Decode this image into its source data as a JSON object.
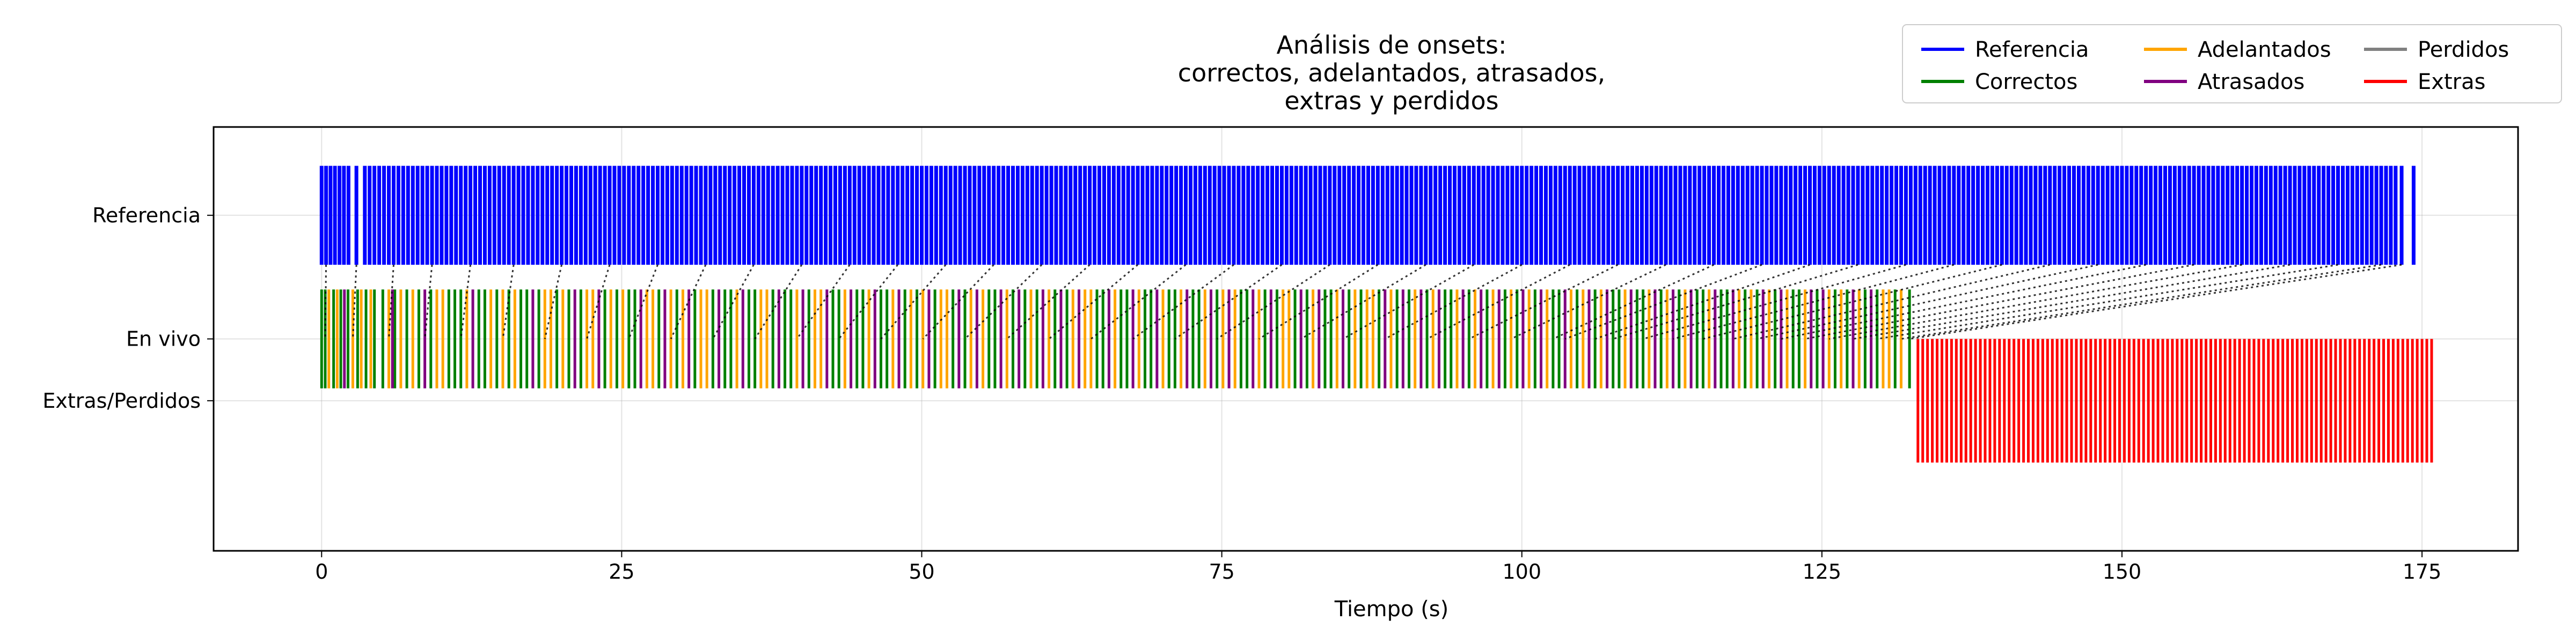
{
  "chart_data": {
    "type": "event-timeline",
    "title_lines": [
      "Análisis de onsets:",
      "correctos, adelantados, atrasados,",
      "extras y perdidos"
    ],
    "xlabel": "Tiempo (s)",
    "xlim": [
      -9,
      183
    ],
    "xticks": [
      0,
      25,
      50,
      75,
      100,
      125,
      150,
      175
    ],
    "ylim": [
      -1.2,
      1.2
    ],
    "ytick_labels": [
      {
        "value": 0.7,
        "label": "Referencia"
      },
      {
        "value": 0.0,
        "label": "En vivo"
      },
      {
        "value": -0.35,
        "label": "Extras/Perdidos"
      }
    ],
    "grid": true,
    "legend": {
      "placement": "top-right",
      "columns": 3,
      "entries": [
        {
          "name": "Referencia",
          "color": "#0000ff"
        },
        {
          "name": "Correctos",
          "color": "#008000"
        },
        {
          "name": "Adelantados",
          "color": "#ffa500"
        },
        {
          "name": "Atrasados",
          "color": "#800080"
        },
        {
          "name": "Perdidos",
          "color": "#808080"
        },
        {
          "name": "Extras",
          "color": "#ff0000"
        }
      ]
    },
    "rows": {
      "reference": {
        "y_low": 0.42,
        "y_high": 0.98,
        "color": "#0000ff"
      },
      "live": {
        "y_low": -0.28,
        "y_high": 0.28
      },
      "extras": {
        "y_low": -0.7,
        "y_high": 0.0,
        "color": "#ff0000"
      },
      "link_y_top": 0.42,
      "link_y_bottom": 0.0
    },
    "reference_onsets": [
      0.0,
      0.37,
      0.74,
      1.11,
      1.49,
      1.86,
      2.24,
      2.9,
      3.6,
      4.0,
      4.4,
      4.8,
      5.2,
      5.6,
      6.0,
      6.4,
      6.8,
      7.2,
      7.6,
      8.0,
      8.4,
      8.8,
      9.2,
      9.6,
      10.0,
      10.4,
      10.8,
      11.2,
      11.6,
      12.0,
      12.4,
      12.8,
      13.2,
      13.6,
      14.0,
      14.4,
      14.8,
      15.2,
      15.6,
      16.0,
      16.4,
      16.8,
      17.2,
      17.6,
      18.0,
      18.4,
      18.8,
      19.2,
      19.6,
      20.0,
      20.4,
      20.8,
      21.2,
      21.6,
      22.0,
      22.4,
      22.8,
      23.2,
      23.6,
      24.0,
      24.4,
      24.8,
      25.2,
      25.6,
      26.0,
      26.4,
      26.8,
      27.2,
      27.6,
      28.0,
      28.4,
      28.8,
      29.2,
      29.6,
      30.0,
      30.4,
      30.8,
      31.2,
      31.6,
      32.0,
      32.4,
      32.8,
      33.2,
      33.6,
      34.0,
      34.4,
      34.8,
      35.2,
      35.6,
      36.0,
      36.4,
      36.8,
      37.2,
      37.6,
      38.0,
      38.4,
      38.8,
      39.2,
      39.6,
      40.0,
      40.4,
      40.8,
      41.2,
      41.6,
      42.0,
      42.4,
      42.8,
      43.2,
      43.6,
      44.0,
      44.4,
      44.8,
      45.2,
      45.6,
      46.0,
      46.4,
      46.8,
      47.2,
      47.6,
      48.0,
      48.4,
      48.8,
      49.2,
      49.6,
      50.0,
      50.4,
      50.8,
      51.2,
      51.6,
      52.0,
      52.4,
      52.8,
      53.2,
      53.6,
      54.0,
      54.4,
      54.8,
      55.2,
      55.6,
      56.0,
      56.4,
      56.8,
      57.2,
      57.6,
      58.0,
      58.4,
      58.8,
      59.2,
      59.6,
      60.0,
      60.4,
      60.8,
      61.2,
      61.6,
      62.0,
      62.4,
      62.8,
      63.2,
      63.6,
      64.0,
      64.4,
      64.8,
      65.2,
      65.6,
      66.0,
      66.4,
      66.8,
      67.2,
      67.6,
      68.0,
      68.4,
      68.8,
      69.2,
      69.6,
      70.0,
      70.4,
      70.8,
      71.2,
      71.6,
      72.0,
      72.4,
      72.8,
      73.2,
      73.6,
      74.0,
      74.4,
      74.8,
      75.2,
      75.6,
      76.0,
      76.4,
      76.8,
      77.2,
      77.6,
      78.0,
      78.4,
      78.8,
      79.2,
      79.6,
      80.0,
      80.4,
      80.8,
      81.2,
      81.6,
      82.0,
      82.4,
      82.8,
      83.2,
      83.6,
      84.0,
      84.4,
      84.8,
      85.2,
      85.6,
      86.0,
      86.4,
      86.8,
      87.2,
      87.6,
      88.0,
      88.4,
      88.8,
      89.2,
      89.6,
      90.0,
      90.4,
      90.8,
      91.2,
      91.6,
      92.0,
      92.4,
      92.8,
      93.2,
      93.6,
      94.0,
      94.4,
      94.8,
      95.2,
      95.6,
      96.0,
      96.4,
      96.8,
      97.2,
      97.6,
      98.0,
      98.4,
      98.8,
      99.2,
      99.6,
      100.0,
      100.4,
      100.8,
      101.2,
      101.6,
      102.0,
      102.4,
      102.8,
      103.2,
      103.6,
      104.0,
      104.4,
      104.8,
      105.2,
      105.6,
      106.0,
      106.4,
      106.8,
      107.2,
      107.6,
      108.0,
      108.4,
      108.8,
      109.2,
      109.6,
      110.0,
      110.4,
      110.8,
      111.2,
      111.6,
      112.0,
      112.4,
      112.8,
      113.2,
      113.6,
      114.0,
      114.4,
      114.8,
      115.2,
      115.6,
      116.0,
      116.4,
      116.8,
      117.2,
      117.6,
      118.0,
      118.4,
      118.8,
      119.2,
      119.6,
      120.0,
      120.4,
      120.8,
      121.2,
      121.6,
      122.0,
      122.4,
      122.8,
      123.2,
      123.6,
      124.0,
      124.4,
      124.8,
      125.2,
      125.6,
      126.0,
      126.4,
      126.8,
      127.2,
      127.6,
      128.0,
      128.4,
      128.8,
      129.2,
      129.6,
      130.0,
      130.4,
      130.8,
      131.2,
      131.6,
      132.0,
      132.4,
      132.8,
      133.2,
      133.6,
      134.0,
      134.4,
      134.8,
      135.2,
      135.6,
      136.0,
      136.4,
      136.8,
      137.2,
      137.6,
      138.0,
      138.4,
      138.8,
      139.2,
      139.6,
      140.0,
      140.4,
      140.8,
      141.2,
      141.6,
      142.0,
      142.4,
      142.8,
      143.2,
      143.6,
      144.0,
      144.4,
      144.8,
      145.2,
      145.6,
      146.0,
      146.4,
      146.8,
      147.2,
      147.6,
      148.0,
      148.4,
      148.8,
      149.2,
      149.6,
      150.0,
      150.4,
      150.8,
      151.2,
      151.6,
      152.0,
      152.4,
      152.8,
      153.2,
      153.6,
      154.0,
      154.4,
      154.8,
      155.2,
      155.6,
      156.0,
      156.4,
      156.8,
      157.2,
      157.6,
      158.0,
      158.4,
      158.8,
      159.2,
      159.6,
      160.0,
      160.4,
      160.8,
      161.2,
      161.6,
      162.0,
      162.4,
      162.8,
      163.2,
      163.6,
      164.0,
      164.4,
      164.8,
      165.2,
      165.6,
      166.0,
      166.4,
      166.8,
      167.2,
      167.6,
      168.0,
      168.4,
      168.8,
      169.2,
      169.6,
      170.0,
      170.4,
      170.8,
      171.2,
      171.6,
      172.0,
      172.4,
      172.8,
      173.3,
      174.3
    ],
    "live_onsets_correctos": [
      0.0,
      0.3,
      1.0,
      1.6,
      2.2,
      3.0,
      3.7,
      4.4,
      5.1,
      6.1,
      7.1,
      8.1,
      9.1,
      10.6,
      11.1,
      11.6,
      13.1,
      13.6,
      14.6,
      15.6,
      16.6,
      17.1,
      18.1,
      19.6,
      20.6,
      21.6,
      23.6,
      24.6,
      25.6,
      26.1,
      28.1,
      29.6,
      31.1,
      32.6,
      33.6,
      34.1,
      35.6,
      36.1,
      37.6,
      38.6,
      39.1,
      40.6,
      42.6,
      43.1,
      44.6,
      45.1,
      46.6,
      47.1,
      48.6,
      49.6,
      51.1,
      52.6,
      53.6,
      55.6,
      56.1,
      57.6,
      58.6,
      59.6,
      61.1,
      62.1,
      64.6,
      65.1,
      66.6,
      67.1,
      68.6,
      69.1,
      70.6,
      71.1,
      72.6,
      73.1,
      74.6,
      76.6,
      77.1,
      78.6,
      79.6,
      81.1,
      82.1,
      83.6,
      84.1,
      85.6,
      86.6,
      88.1,
      89.6,
      90.6,
      92.1,
      93.6,
      94.1,
      95.6,
      97.1,
      98.6,
      99.6,
      101.1,
      102.6,
      103.1,
      104.6,
      106.1,
      107.6,
      108.1,
      109.6,
      110.1,
      111.6,
      113.1,
      114.6,
      115.1,
      116.6,
      117.1,
      118.6,
      119.6,
      121.1,
      122.6,
      123.1,
      124.6,
      126.1,
      127.1,
      128.6,
      129.6,
      131.1,
      132.3
    ],
    "live_onsets_adelantados": [
      0.6,
      1.3,
      2.6,
      3.3,
      4.1,
      5.6,
      6.6,
      7.6,
      9.6,
      10.1,
      12.1,
      14.1,
      15.1,
      16.1,
      18.6,
      19.1,
      20.1,
      22.1,
      22.6,
      24.1,
      25.1,
      27.1,
      27.6,
      29.1,
      30.1,
      31.6,
      32.1,
      34.6,
      36.6,
      37.1,
      39.6,
      41.1,
      41.6,
      43.6,
      45.6,
      47.6,
      49.1,
      50.1,
      51.6,
      52.1,
      54.1,
      55.1,
      57.1,
      59.1,
      60.6,
      62.6,
      63.6,
      64.1,
      66.1,
      68.1,
      70.1,
      71.6,
      73.6,
      75.1,
      76.1,
      78.1,
      80.1,
      80.6,
      82.6,
      84.6,
      86.1,
      87.1,
      87.6,
      89.1,
      91.1,
      92.6,
      94.6,
      96.1,
      97.6,
      99.1,
      100.6,
      102.1,
      104.1,
      105.1,
      106.6,
      108.6,
      110.6,
      112.1,
      113.6,
      115.6,
      118.1,
      119.1,
      120.6,
      122.1,
      123.6,
      125.6,
      126.6,
      128.1,
      130.1,
      130.6,
      131.6
    ],
    "live_onsets_atrasados": [
      1.9,
      5.9,
      8.6,
      12.6,
      17.6,
      21.1,
      23.1,
      26.6,
      28.6,
      30.6,
      33.1,
      35.1,
      38.1,
      40.1,
      42.1,
      44.1,
      46.1,
      48.1,
      50.6,
      53.1,
      54.6,
      56.6,
      58.1,
      60.1,
      61.6,
      63.1,
      65.6,
      67.6,
      69.6,
      72.1,
      74.1,
      75.6,
      77.6,
      79.1,
      81.6,
      83.1,
      85.1,
      88.6,
      90.1,
      91.6,
      93.1,
      95.1,
      96.6,
      98.1,
      100.1,
      101.6,
      103.6,
      105.6,
      107.1,
      109.1,
      111.1,
      112.6,
      114.1,
      116.1,
      117.6,
      120.1,
      121.6,
      124.1,
      125.1,
      127.6,
      129.1
    ],
    "extra_onsets": [
      133.0,
      133.4,
      133.8,
      134.2,
      134.6,
      135.0,
      135.4,
      135.8,
      136.2,
      136.6,
      137.0,
      137.4,
      137.8,
      138.2,
      138.6,
      139.0,
      139.4,
      139.8,
      140.2,
      140.6,
      141.0,
      141.4,
      141.8,
      142.2,
      142.6,
      143.0,
      143.4,
      143.8,
      144.2,
      144.6,
      145.0,
      145.4,
      145.8,
      146.2,
      146.6,
      147.0,
      147.4,
      147.8,
      148.2,
      148.6,
      149.0,
      149.4,
      149.8,
      150.2,
      150.6,
      151.0,
      151.4,
      151.8,
      152.2,
      152.6,
      153.0,
      153.4,
      153.8,
      154.2,
      154.6,
      155.0,
      155.4,
      155.8,
      156.2,
      156.6,
      157.0,
      157.4,
      157.8,
      158.2,
      158.6,
      159.0,
      159.4,
      159.8,
      160.2,
      160.6,
      161.0,
      161.4,
      161.8,
      162.2,
      162.6,
      163.0,
      163.4,
      163.8,
      164.2,
      164.6,
      165.0,
      165.4,
      165.8,
      166.2,
      166.6,
      167.0,
      167.4,
      167.8,
      168.2,
      168.6,
      169.0,
      169.4,
      169.8,
      170.2,
      170.6,
      171.0,
      171.4,
      171.8,
      172.2,
      172.6,
      173.0,
      173.4,
      173.8,
      174.2,
      174.6,
      175.0,
      175.4,
      175.8
    ],
    "links": [
      {
        "ref": 0.37,
        "live": 0.3
      },
      {
        "ref": 2.9,
        "live": 2.6
      },
      {
        "ref": 6.0,
        "live": 5.6
      },
      {
        "ref": 9.2,
        "live": 8.6
      },
      {
        "ref": 12.4,
        "live": 11.6
      },
      {
        "ref": 16.0,
        "live": 15.1
      },
      {
        "ref": 20.0,
        "live": 18.6
      },
      {
        "ref": 24.0,
        "live": 22.1
      },
      {
        "ref": 28.0,
        "live": 25.6
      },
      {
        "ref": 32.0,
        "live": 29.1
      },
      {
        "ref": 36.0,
        "live": 32.6
      },
      {
        "ref": 40.0,
        "live": 36.1
      },
      {
        "ref": 44.0,
        "live": 39.6
      },
      {
        "ref": 48.0,
        "live": 43.1
      },
      {
        "ref": 52.0,
        "live": 46.6
      },
      {
        "ref": 56.0,
        "live": 50.1
      },
      {
        "ref": 60.0,
        "live": 53.6
      },
      {
        "ref": 64.0,
        "live": 57.1
      },
      {
        "ref": 68.0,
        "live": 60.6
      },
      {
        "ref": 72.0,
        "live": 64.1
      },
      {
        "ref": 76.0,
        "live": 67.6
      },
      {
        "ref": 80.0,
        "live": 71.1
      },
      {
        "ref": 84.0,
        "live": 74.6
      },
      {
        "ref": 88.0,
        "live": 78.1
      },
      {
        "ref": 92.0,
        "live": 81.6
      },
      {
        "ref": 96.0,
        "live": 85.1
      },
      {
        "ref": 100.0,
        "live": 88.6
      },
      {
        "ref": 104.0,
        "live": 92.1
      },
      {
        "ref": 108.0,
        "live": 95.6
      },
      {
        "ref": 112.0,
        "live": 99.1
      },
      {
        "ref": 116.0,
        "live": 102.6
      },
      {
        "ref": 120.0,
        "live": 103.6
      },
      {
        "ref": 124.0,
        "live": 106.1
      },
      {
        "ref": 128.0,
        "live": 107.6
      },
      {
        "ref": 132.0,
        "live": 110.1
      },
      {
        "ref": 136.0,
        "live": 112.6
      },
      {
        "ref": 140.0,
        "live": 115.1
      },
      {
        "ref": 144.0,
        "live": 117.6
      },
      {
        "ref": 148.0,
        "live": 119.6
      },
      {
        "ref": 152.0,
        "live": 121.6
      },
      {
        "ref": 156.0,
        "live": 123.6
      },
      {
        "ref": 160.0,
        "live": 125.6
      },
      {
        "ref": 164.0,
        "live": 127.6
      },
      {
        "ref": 168.0,
        "live": 129.6
      },
      {
        "ref": 171.6,
        "live": 131.6
      },
      {
        "ref": 173.3,
        "live": 132.3
      }
    ]
  }
}
